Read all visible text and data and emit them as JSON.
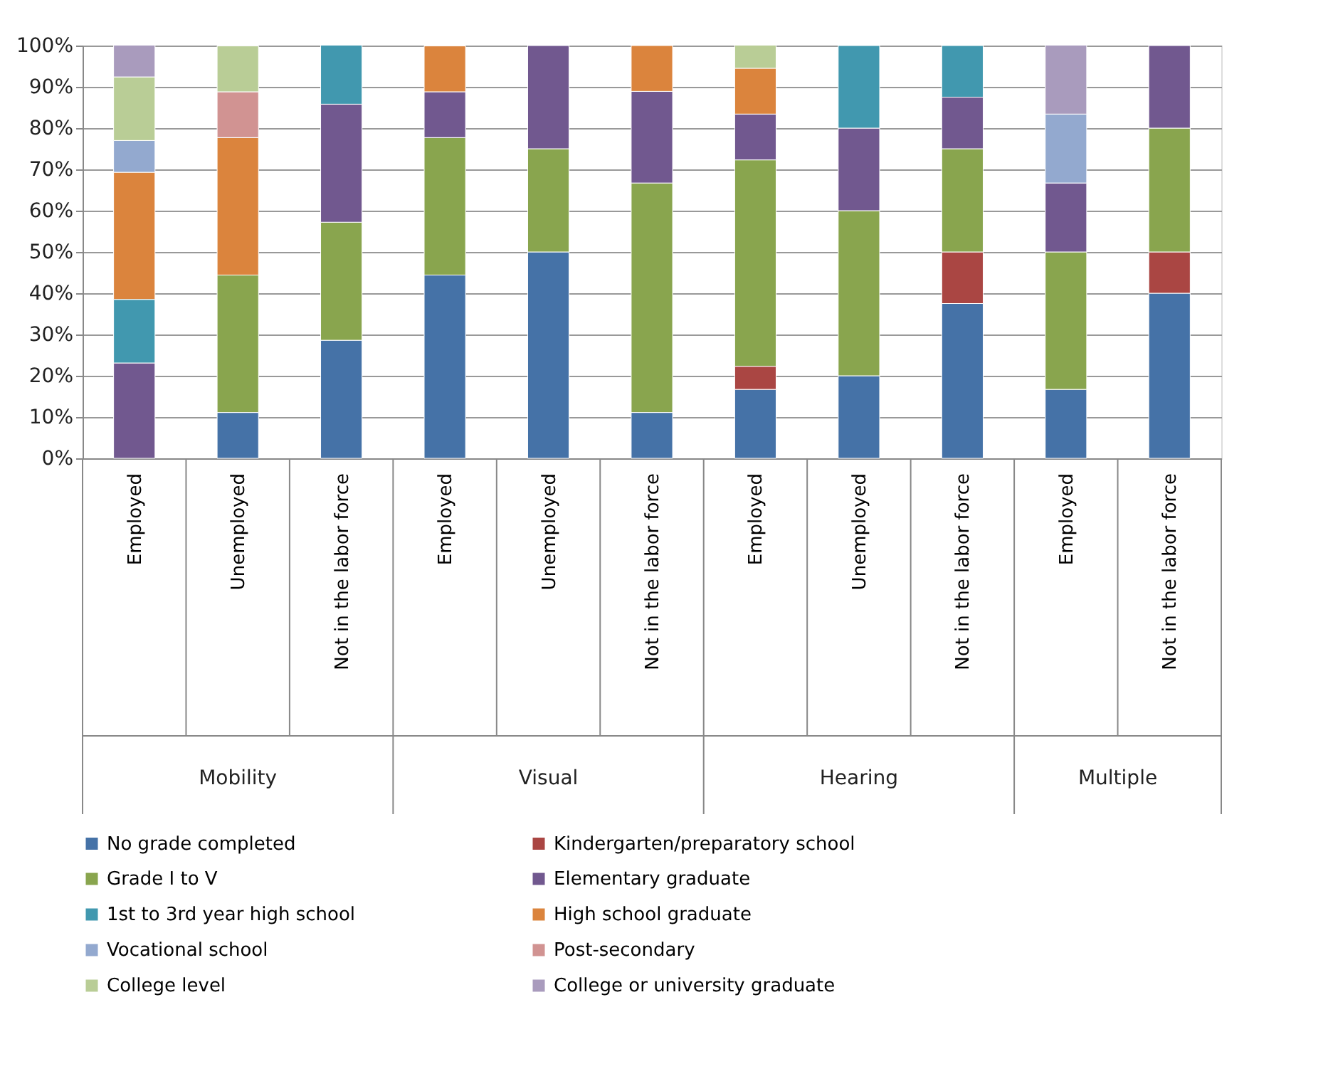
{
  "chart_data": {
    "type": "bar",
    "stacked": true,
    "legend": "bottom",
    "grid": "y",
    "categories": [
      "Employed",
      "Unemployed",
      "Not in the labor force",
      "Employed",
      "Unemployed",
      "Not in the labor force",
      "Employed",
      "Unemployed",
      "Not in the labor force",
      "Employed",
      "Not in the labor force"
    ],
    "annotations": [
      "Mobility",
      "Visual",
      "Hearing",
      "Multiple"
    ],
    "ylim": [
      0,
      100
    ],
    "yticks": [
      {
        "value": 0,
        "label": "0%"
      },
      {
        "value": 10,
        "label": "10%"
      },
      {
        "value": 20,
        "label": "20%"
      },
      {
        "value": 30,
        "label": "30%"
      },
      {
        "value": 40,
        "label": "40%"
      },
      {
        "value": 50,
        "label": "50%"
      },
      {
        "value": 60,
        "label": "60%"
      },
      {
        "value": 70,
        "label": "70%"
      },
      {
        "value": 80,
        "label": "80%"
      },
      {
        "value": 90,
        "label": "90%"
      },
      {
        "value": 100,
        "label": "100%"
      }
    ],
    "series": [
      {
        "name": "No grade completed",
        "color": "#4572a7",
        "values": [
          0,
          11.1,
          28.6,
          44.4,
          50,
          11.1,
          16.7,
          20,
          37.5,
          16.7,
          40
        ]
      },
      {
        "name": "Kindergarten/preparatory school",
        "color": "#aa4643",
        "values": [
          0,
          0,
          0,
          0,
          0,
          0,
          5.6,
          0,
          12.5,
          0,
          10
        ]
      },
      {
        "name": "Grade I to V",
        "color": "#89a54e",
        "values": [
          0,
          33.3,
          28.6,
          33.3,
          25,
          55.6,
          50,
          40,
          25,
          33.3,
          30
        ]
      },
      {
        "name": "Elementary graduate",
        "color": "#71588f",
        "values": [
          23.1,
          0,
          28.6,
          11.1,
          25,
          22.2,
          11.1,
          20,
          12.5,
          16.7,
          20
        ]
      },
      {
        "name": "1st to 3rd year high school",
        "color": "#4198af",
        "values": [
          15.4,
          0,
          14.3,
          0,
          0,
          0,
          0,
          20,
          12.5,
          0,
          0
        ]
      },
      {
        "name": "High school graduate",
        "color": "#db843d",
        "values": [
          30.8,
          33.3,
          0,
          11.1,
          0,
          11.1,
          11.1,
          0,
          0,
          0,
          0
        ]
      },
      {
        "name": "Vocational school",
        "color": "#93a9cf",
        "values": [
          7.7,
          0,
          0,
          0,
          0,
          0,
          0,
          0,
          0,
          16.7,
          0
        ]
      },
      {
        "name": "Post-secondary",
        "color": "#d19392",
        "values": [
          0,
          11.1,
          0,
          0,
          0,
          0,
          0,
          0,
          0,
          0,
          0
        ]
      },
      {
        "name": "College level",
        "color": "#b9cd96",
        "values": [
          15.4,
          11.1,
          0,
          0,
          0,
          0,
          5.6,
          0,
          0,
          0,
          0
        ]
      },
      {
        "name": "College or university graduate",
        "color": "#a99bbd",
        "values": [
          7.7,
          0,
          0,
          0,
          0,
          0,
          0,
          0,
          0,
          16.7,
          0
        ]
      }
    ]
  }
}
